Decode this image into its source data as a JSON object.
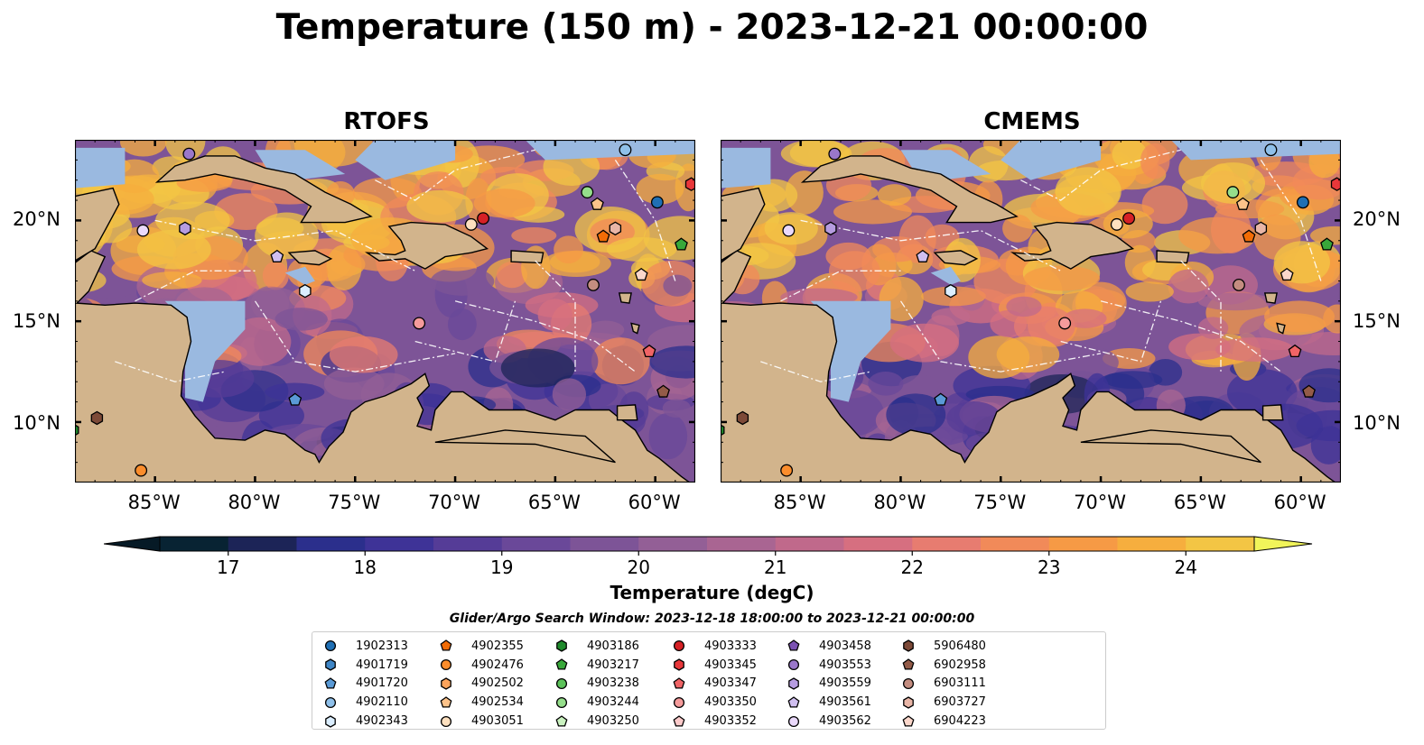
{
  "title": "Temperature (150 m) - 2023-12-21 00:00:00",
  "panels": [
    {
      "title": "RTOFS"
    },
    {
      "title": "CMEMS"
    }
  ],
  "axes": {
    "lat_ticks": [
      "20°N",
      "15°N",
      "10°N"
    ],
    "lon_ticks": [
      "85°W",
      "80°W",
      "75°W",
      "70°W",
      "65°W",
      "60°W"
    ],
    "lon_range": [
      -89,
      -58
    ],
    "lat_range": [
      7,
      24
    ]
  },
  "colorbar": {
    "label": "Temperature (degC)",
    "ticks": [
      "17",
      "18",
      "19",
      "20",
      "21",
      "22",
      "23",
      "24"
    ],
    "min": 16.5,
    "max": 24.5,
    "colors": [
      "#082333",
      "#1c2457",
      "#2b2f8c",
      "#3e3397",
      "#553c97",
      "#6a4899",
      "#7d5497",
      "#935f96",
      "#a96592",
      "#c0698b",
      "#d66f80",
      "#e77c70",
      "#f18a59",
      "#f69a45",
      "#f6ae3e",
      "#f3c544"
    ],
    "extend_low": "#061a26",
    "extend_high": "#f1f45a"
  },
  "search_window": "Glider/Argo Search Window: 2023-12-18 18:00:00 to 2023-12-21 00:00:00",
  "legend": [
    {
      "id": "1902313",
      "marker": "circle",
      "color": "#1f6fb4"
    },
    {
      "id": "4901719",
      "marker": "hexagon",
      "color": "#3f86c6"
    },
    {
      "id": "4901720",
      "marker": "pentagon",
      "color": "#5a9ad6"
    },
    {
      "id": "4902110",
      "marker": "circle",
      "color": "#8fc0ea"
    },
    {
      "id": "4902343",
      "marker": "hexagon",
      "color": "#dbeeff"
    },
    {
      "id": "4902355",
      "marker": "pentagon",
      "color": "#f26c06"
    },
    {
      "id": "4902476",
      "marker": "circle",
      "color": "#fb8d2c"
    },
    {
      "id": "4902502",
      "marker": "hexagon",
      "color": "#fda45c"
    },
    {
      "id": "4902534",
      "marker": "pentagon",
      "color": "#fdc38a"
    },
    {
      "id": "4903051",
      "marker": "circle",
      "color": "#fde0bf"
    },
    {
      "id": "4903186",
      "marker": "hexagon",
      "color": "#1f8a2c"
    },
    {
      "id": "4903217",
      "marker": "pentagon",
      "color": "#38a83a"
    },
    {
      "id": "4903238",
      "marker": "circle",
      "color": "#5cc25a"
    },
    {
      "id": "4903244",
      "marker": "circle",
      "color": "#95de8b"
    },
    {
      "id": "4903250",
      "marker": "pentagon",
      "color": "#caf2c0"
    },
    {
      "id": "4903333",
      "marker": "circle",
      "color": "#d62025"
    },
    {
      "id": "4903345",
      "marker": "hexagon",
      "color": "#e8373a"
    },
    {
      "id": "4903347",
      "marker": "pentagon",
      "color": "#f06466"
    },
    {
      "id": "4903350",
      "marker": "circle",
      "color": "#f59b9b"
    },
    {
      "id": "4903352",
      "marker": "pentagon",
      "color": "#fbcaca"
    },
    {
      "id": "4903458",
      "marker": "pentagon",
      "color": "#7b52b2"
    },
    {
      "id": "4903553",
      "marker": "circle",
      "color": "#9a77ca"
    },
    {
      "id": "4903559",
      "marker": "hexagon",
      "color": "#b69ce0"
    },
    {
      "id": "4903561",
      "marker": "pentagon",
      "color": "#d0bff0"
    },
    {
      "id": "4903562",
      "marker": "circle",
      "color": "#ead9fb"
    },
    {
      "id": "5906480",
      "marker": "hexagon",
      "color": "#7d4a38"
    },
    {
      "id": "6902958",
      "marker": "pentagon",
      "color": "#935b48"
    },
    {
      "id": "6903111",
      "marker": "circle",
      "color": "#c48d80"
    },
    {
      "id": "6903727",
      "marker": "hexagon",
      "color": "#e9b6a7"
    },
    {
      "id": "6904223",
      "marker": "pentagon",
      "color": "#fbd7cb"
    }
  ],
  "stations": [
    {
      "id": "4903562",
      "lon": -85.6,
      "lat": 19.5
    },
    {
      "id": "4903559",
      "lon": -83.5,
      "lat": 19.6
    },
    {
      "id": "4903553",
      "lon": -83.3,
      "lat": 23.3
    },
    {
      "id": "4903561",
      "lon": -78.9,
      "lat": 18.2
    },
    {
      "id": "4902343",
      "lon": -77.5,
      "lat": 16.5
    },
    {
      "id": "4901720",
      "lon": -78.0,
      "lat": 11.1
    },
    {
      "id": "4903051",
      "lon": -69.2,
      "lat": 19.8
    },
    {
      "id": "4903333",
      "lon": -68.6,
      "lat": 20.1
    },
    {
      "id": "4903350",
      "lon": -71.8,
      "lat": 14.9
    },
    {
      "id": "4903244",
      "lon": -63.4,
      "lat": 21.4
    },
    {
      "id": "4902534",
      "lon": -62.9,
      "lat": 20.8
    },
    {
      "id": "6903727",
      "lon": -62.0,
      "lat": 19.6
    },
    {
      "id": "4902355",
      "lon": -62.6,
      "lat": 19.2
    },
    {
      "id": "1902313",
      "lon": -59.9,
      "lat": 20.9
    },
    {
      "id": "4902110",
      "lon": -61.5,
      "lat": 23.5
    },
    {
      "id": "4903345",
      "lon": -58.2,
      "lat": 21.8
    },
    {
      "id": "4903217",
      "lon": -58.7,
      "lat": 18.8
    },
    {
      "id": "6904223",
      "lon": -60.7,
      "lat": 17.3
    },
    {
      "id": "6903111",
      "lon": -63.1,
      "lat": 16.8
    },
    {
      "id": "4903347",
      "lon": -60.3,
      "lat": 13.5
    },
    {
      "id": "6902958",
      "lon": -59.6,
      "lat": 11.5
    },
    {
      "id": "5906480",
      "lon": -87.9,
      "lat": 10.2
    },
    {
      "id": "4903186",
      "lon": -89.1,
      "lat": 9.6
    },
    {
      "id": "4902476",
      "lon": -85.7,
      "lat": 7.6
    }
  ]
}
